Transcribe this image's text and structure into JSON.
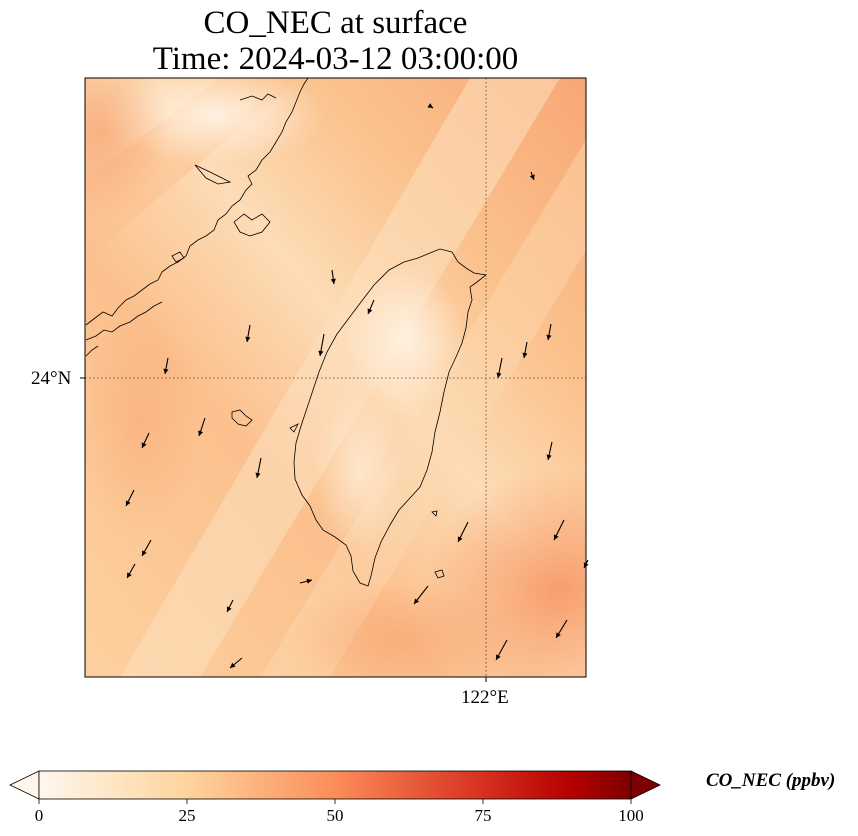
{
  "title": {
    "line1": "CO_NEC at surface",
    "line2": "Time: 2024-03-12 03:00:00"
  },
  "map": {
    "latitude_label": "24°N",
    "longitude_label": "122°E",
    "gridline_style": "dotted",
    "field_colors": {
      "low": "#fff1df",
      "mid": "#fbc48f",
      "high": "#f89e69"
    },
    "coastline_color": "#000000",
    "wind_arrow_color": "#000000"
  },
  "colorbar": {
    "label": "CO_NEC (ppbv)",
    "ticks": [
      "0",
      "25",
      "50",
      "75",
      "100"
    ],
    "min": 0,
    "max": 100,
    "extend": "both",
    "colormap": "OrRd",
    "colors": [
      "#fff7ec",
      "#fdd49e",
      "#fc8d59",
      "#d7301f",
      "#b30000",
      "#7f0000"
    ]
  }
}
